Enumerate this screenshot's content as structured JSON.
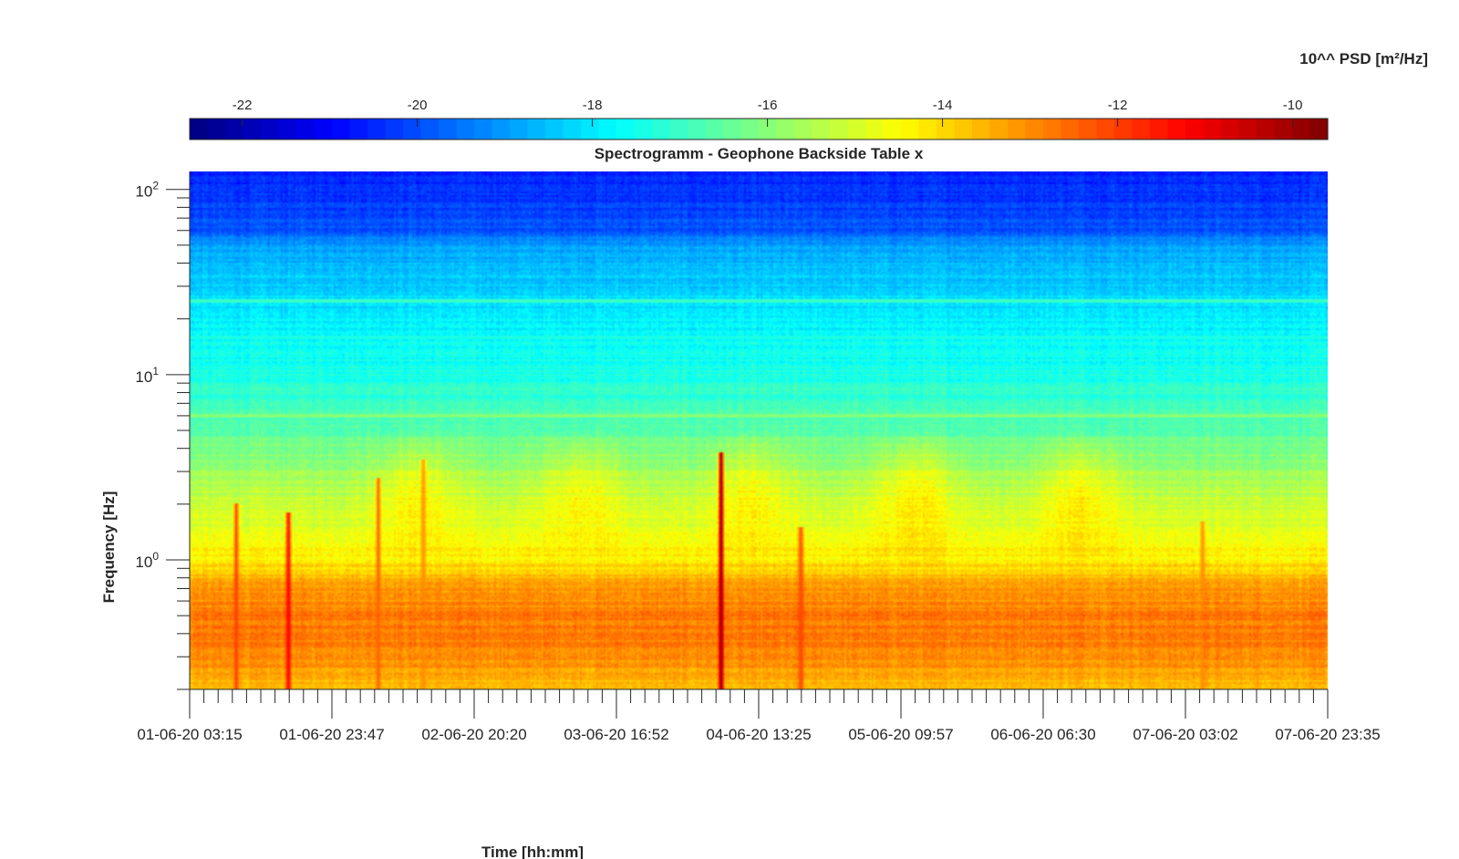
{
  "chart_data": {
    "type": "heatmap",
    "title": "Spectrogramm - Geophone Backside Table x",
    "xlabel": "Time [hh:mm]",
    "ylabel": "Frequency [Hz]",
    "x_tick_labels": [
      "01-06-20 03:15",
      "01-06-20 23:47",
      "02-06-20 20:20",
      "03-06-20 16:52",
      "04-06-20 13:25",
      "05-06-20 09:57",
      "06-06-20 06:30",
      "07-06-20 03:02",
      "07-06-20 23:35"
    ],
    "y_scale": "log",
    "y_ticks": [
      {
        "base": "10",
        "exp": "2",
        "value": 100
      },
      {
        "base": "10",
        "exp": "1",
        "value": 10
      },
      {
        "base": "10",
        "exp": "0",
        "value": 1
      }
    ],
    "ylim": [
      0.2,
      125
    ],
    "colorbar": {
      "label": "10^^ PSD [m²/Hz]",
      "ticks": [
        "-22",
        "-20",
        "-18",
        "-16",
        "-14",
        "-12",
        "-10"
      ],
      "tick_values": [
        -22,
        -20,
        -18,
        -16,
        -14,
        -12,
        -10
      ],
      "range": [
        -22.6,
        -9.6
      ],
      "colormap": "jet",
      "colors": [
        "#00008f",
        "#0000ff",
        "#00ffff",
        "#ffff00",
        "#ff0000",
        "#800000"
      ]
    },
    "background_levels_log10_psd": [
      {
        "freq_hz": 125,
        "level": -20.6
      },
      {
        "freq_hz": 60,
        "level": -19.9
      },
      {
        "freq_hz": 50,
        "level": -19.0
      },
      {
        "freq_hz": 40,
        "level": -18.6
      },
      {
        "freq_hz": 20,
        "level": -17.9
      },
      {
        "freq_hz": 10,
        "level": -17.4
      },
      {
        "freq_hz": 5,
        "level": -16.6
      },
      {
        "freq_hz": 3,
        "level": -15.7
      },
      {
        "freq_hz": 1,
        "level": -14.3
      },
      {
        "freq_hz": 0.7,
        "level": -13.2
      },
      {
        "freq_hz": 0.5,
        "level": -12.8
      },
      {
        "freq_hz": 0.3,
        "level": -12.9
      },
      {
        "freq_hz": 0.2,
        "level": -13.7
      }
    ],
    "lines_hz": [
      {
        "freq_hz": 6,
        "level": -16.0
      },
      {
        "freq_hz": 25,
        "level": -17.0
      },
      {
        "freq_hz": 16,
        "level": -17.4
      }
    ],
    "events": [
      {
        "time": "01-06-20 10:00",
        "top_hz": 2.0,
        "level": -12.0
      },
      {
        "time": "01-06-20 17:30",
        "top_hz": 1.8,
        "level": -11.0
      },
      {
        "time": "02-06-20 06:30",
        "top_hz": 2.8,
        "level": -12.5
      },
      {
        "time": "02-06-20 13:00",
        "top_hz": 3.5,
        "level": -13.0
      },
      {
        "time": "04-06-20 08:00",
        "top_hz": 3.8,
        "level": -9.8
      },
      {
        "time": "04-06-20 19:30",
        "top_hz": 1.5,
        "level": -12.0
      },
      {
        "time": "07-06-20 05:30",
        "top_hz": 1.6,
        "level": -13.0
      }
    ],
    "daytime_bands": [
      {
        "time": "02-06-20 12:00",
        "level": -14.2
      },
      {
        "time": "03-06-20 12:00",
        "level": -14.2
      },
      {
        "time": "04-06-20 12:00",
        "level": -14.2
      },
      {
        "time": "05-06-20 12:00",
        "level": -14.0
      },
      {
        "time": "06-06-20 12:00",
        "level": -14.0
      }
    ]
  }
}
